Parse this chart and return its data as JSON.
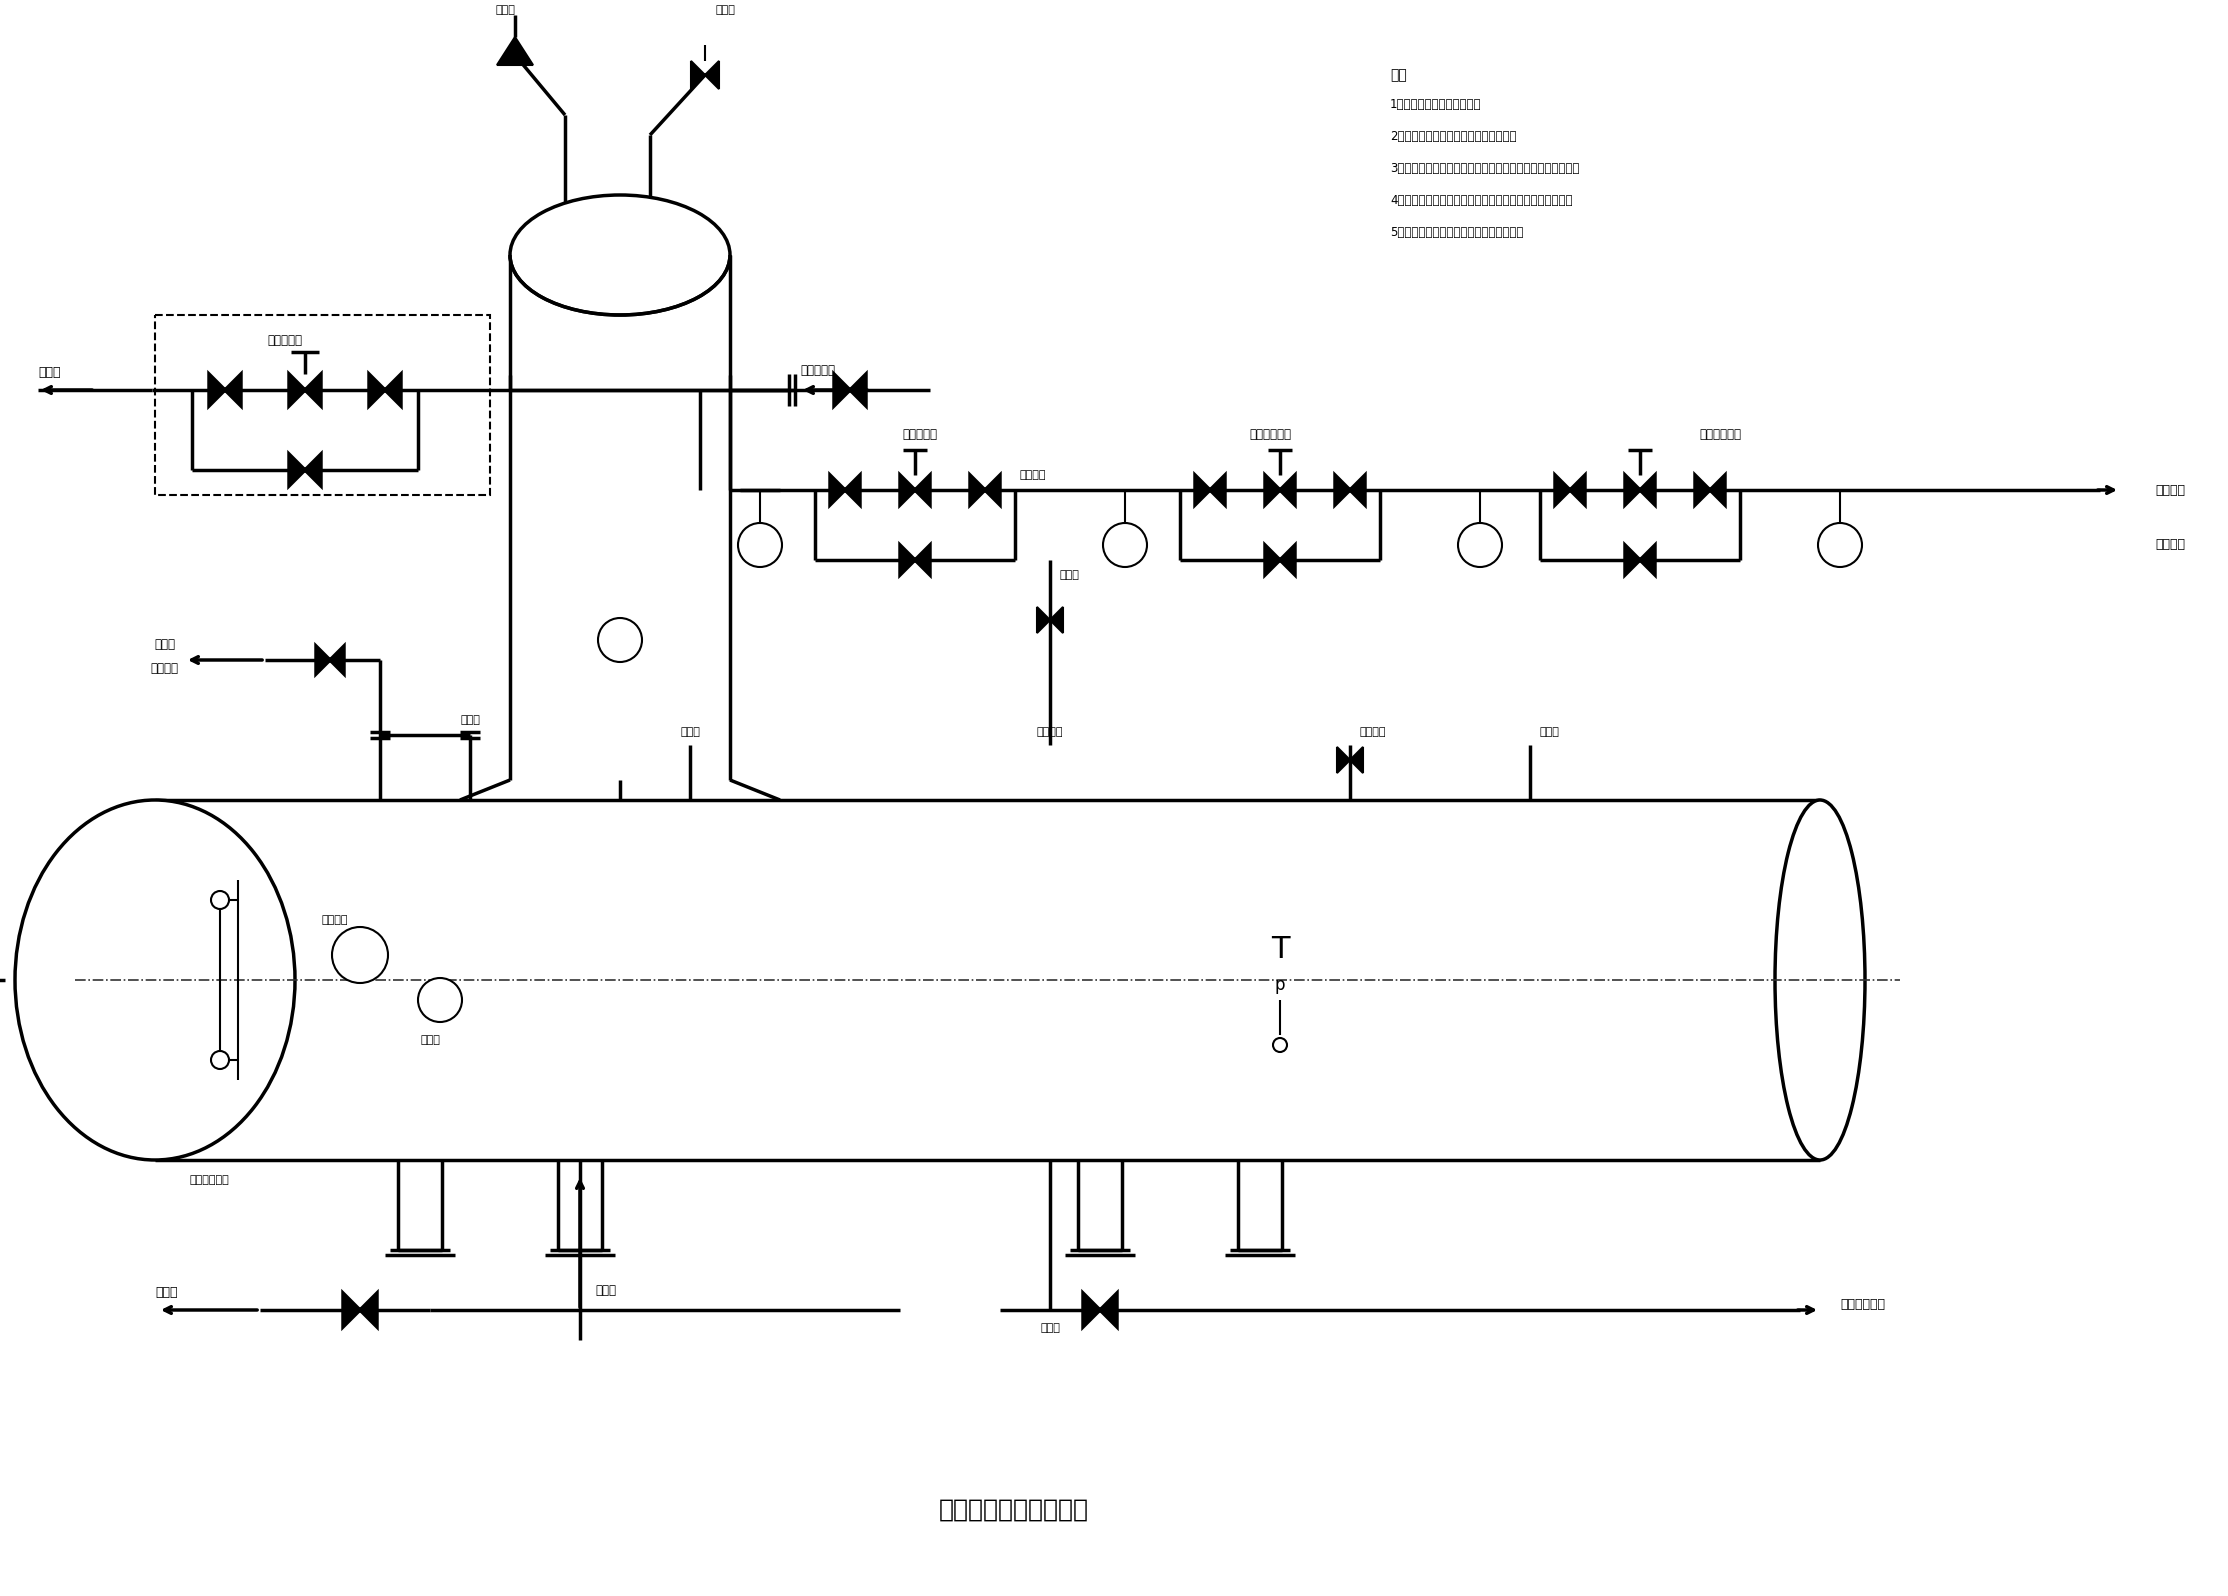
{
  "title": "热力除氧器系统流程图",
  "title_fontsize": 18,
  "background_color": "#ffffff",
  "line_color": "#000000",
  "notes_title": "注：",
  "notes": [
    "1、装置范围阀门均为手动；",
    "2、电动调节阀的调节由基本回路完成；",
    "3、图纸描述若涉及其他控制回路，则可在主控上电动操作；",
    "4、水箱容量上一般须满容，气体容量之一般须保持压力；",
    "5、若有告警，则应以产量开展相关处理。"
  ]
}
